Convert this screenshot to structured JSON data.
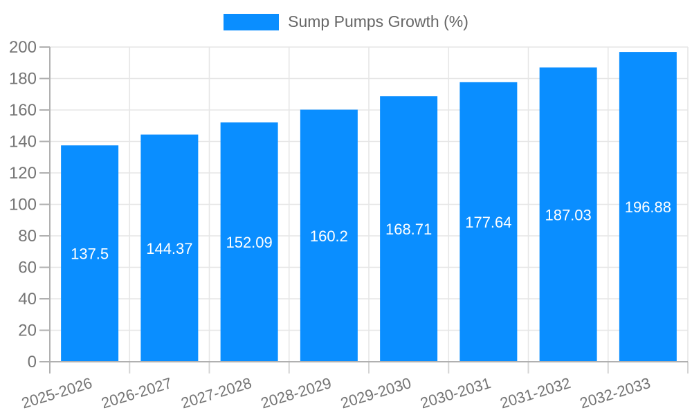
{
  "chart_data": {
    "type": "bar",
    "title": "Sump Pumps Growth (%)",
    "legend_label": "Sump Pumps Growth (%)",
    "legend_position": "top",
    "categories": [
      "2025-2026",
      "2026-2027",
      "2027-2028",
      "2028-2029",
      "2029-2030",
      "2030-2031",
      "2031-2032",
      "2032-2033"
    ],
    "values": [
      137.5,
      144.37,
      152.09,
      160.2,
      168.71,
      177.64,
      187.03,
      196.88
    ],
    "value_labels": [
      "137.5",
      "144.37",
      "152.09",
      "160.2",
      "168.71",
      "177.64",
      "187.03",
      "196.88"
    ],
    "xlabel": "",
    "ylabel": "",
    "ylim": [
      0,
      200
    ],
    "ytick_step": 20,
    "yticks": [
      "0",
      "20",
      "40",
      "60",
      "80",
      "100",
      "120",
      "140",
      "160",
      "180",
      "200"
    ],
    "grid": true,
    "colors": {
      "bar": "#0a8eff",
      "grid_line": "#e6e6e6",
      "axis_line": "#b0b0b0",
      "tick_line": "#d4d4d4",
      "axis_label": "#757575",
      "value_label": "#ffffff",
      "legend_text": "#666666"
    }
  }
}
